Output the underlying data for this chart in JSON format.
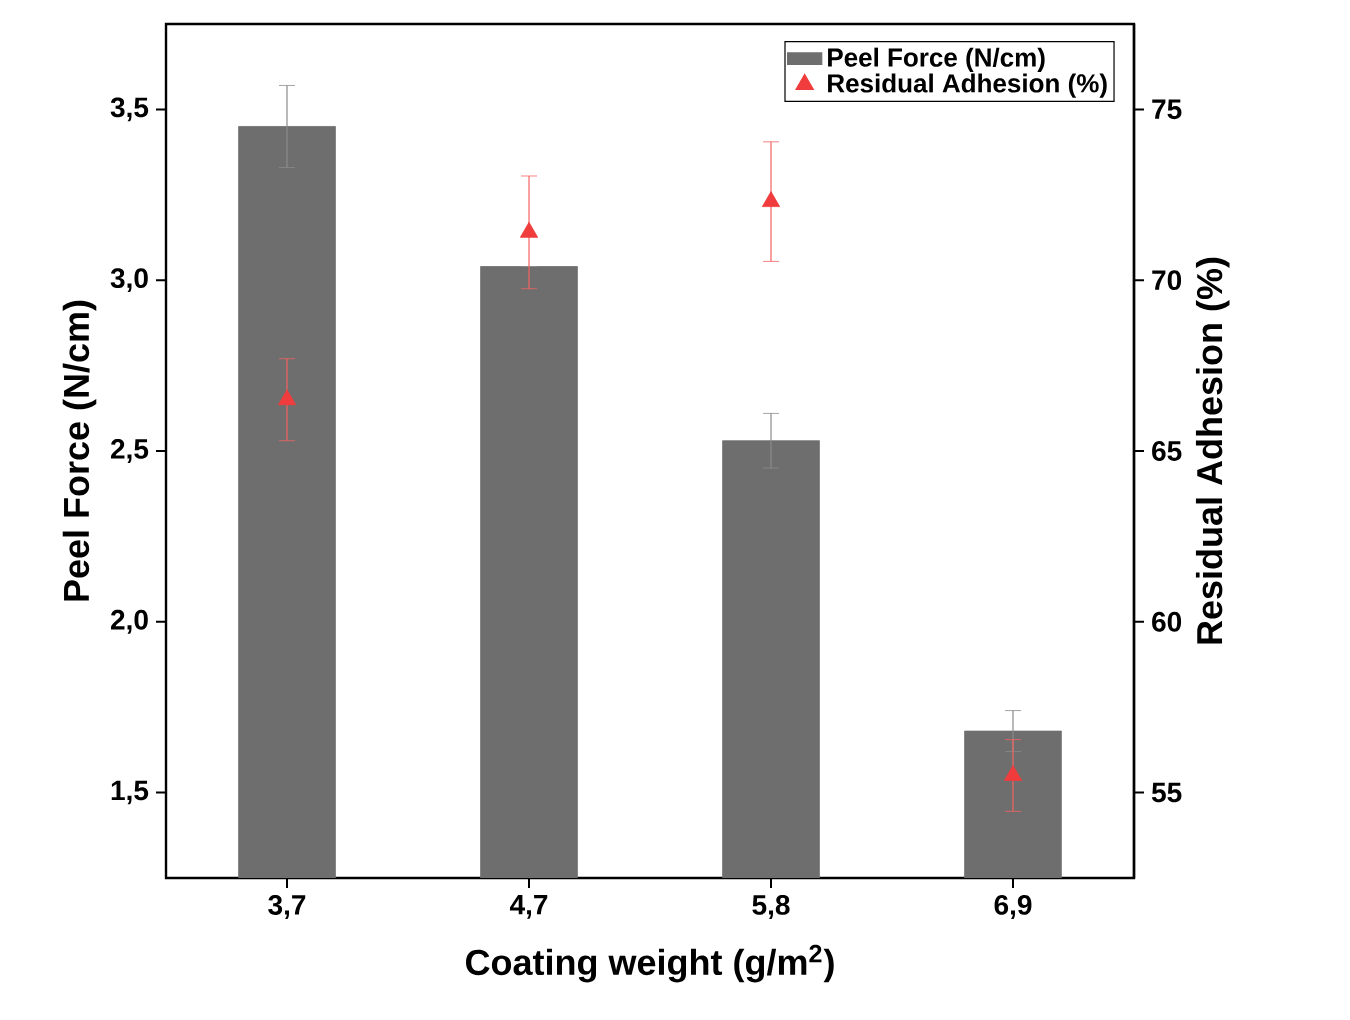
{
  "chart_data": {
    "type": "bar",
    "xlabel": "Coating weight (g/m$^{2}$)",
    "ylabel": "Peel Force (N/cm)",
    "y2label": "Residual Adhesion (%)",
    "categories": [
      "3,7",
      "4,7",
      "5,8",
      "6,9"
    ],
    "series": [
      {
        "name": "Peel Force (N/cm)",
        "color": "#6e6e6e",
        "values": [
          3.45,
          3.04,
          2.53,
          1.68
        ],
        "errors": [
          0.12,
          null,
          0.08,
          0.06
        ]
      },
      {
        "name": "Residual Adhesion (%)",
        "type": "scatter",
        "axis": "y2",
        "marker": "triangle",
        "color": "#f03c3c",
        "values": [
          66.5,
          71.4,
          72.3,
          55.5
        ],
        "errors": [
          1.2,
          1.65,
          1.75,
          1.05
        ]
      }
    ],
    "ylim": [
      1.25,
      3.75
    ],
    "yticks": [
      {
        "value": 1.5,
        "label": "1,5"
      },
      {
        "value": 2.0,
        "label": "2,0"
      },
      {
        "value": 2.5,
        "label": "2,5"
      },
      {
        "value": 3.0,
        "label": "3,0"
      },
      {
        "value": 3.5,
        "label": "3,5"
      }
    ],
    "y2lim": [
      52.5,
      77.5
    ],
    "y2ticks": [
      55,
      60,
      65,
      70,
      75
    ],
    "legend": "top right"
  }
}
